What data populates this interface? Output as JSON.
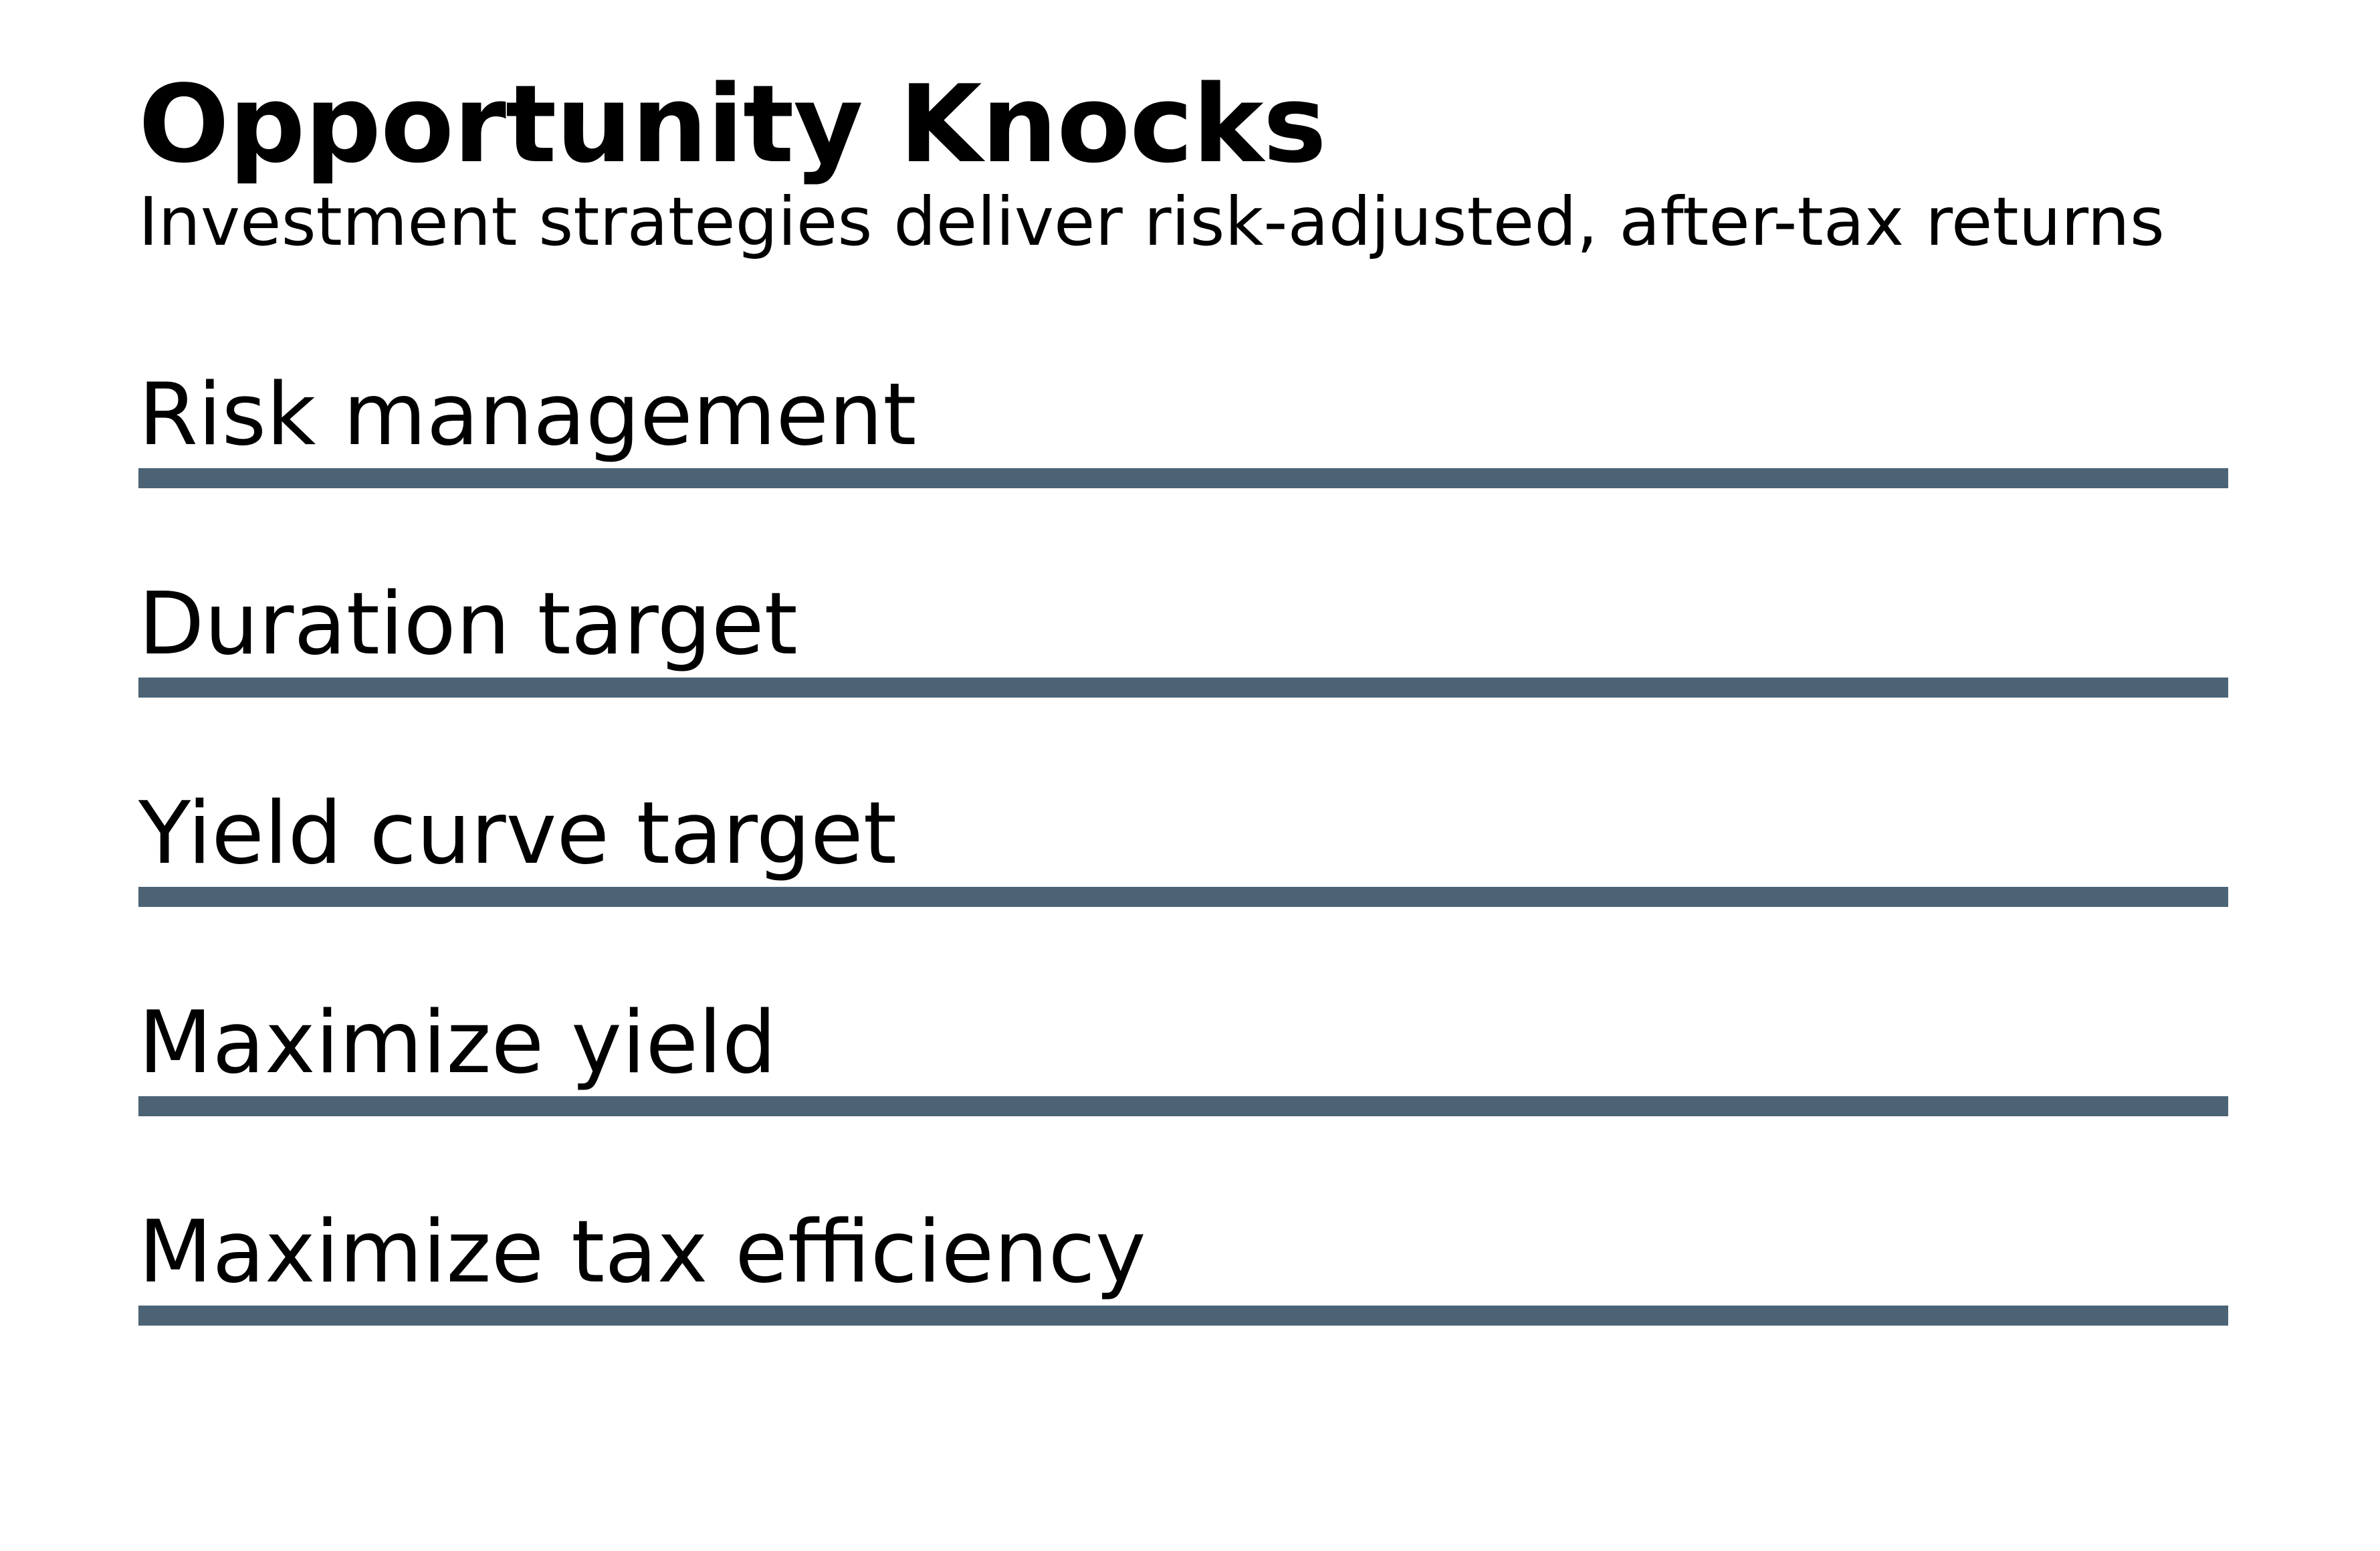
{
  "header": {
    "title": "Opportunity Knocks",
    "subtitle": "Investment strategies deliver risk-adjusted, after-tax returns"
  },
  "strategies": [
    {
      "label": "Risk management"
    },
    {
      "label": "Duration target"
    },
    {
      "label": "Yield curve target"
    },
    {
      "label": "Maximize yield"
    },
    {
      "label": "Maximize tax efficiency"
    }
  ],
  "colors": {
    "rule": "#4b6375",
    "text": "#000000",
    "background": "#ffffff"
  }
}
